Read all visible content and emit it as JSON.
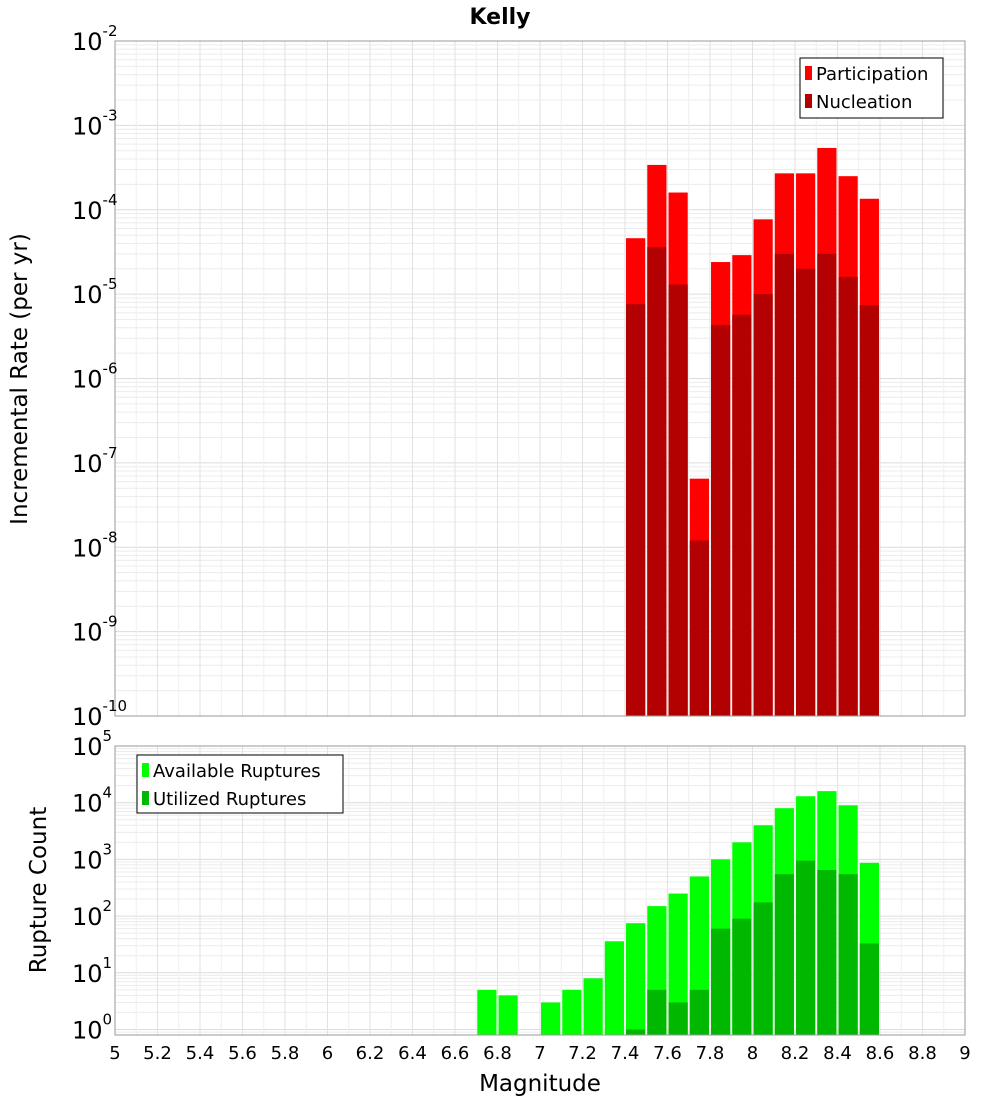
{
  "chart_data": [
    {
      "type": "bar",
      "title": "Kelly",
      "xlabel": "",
      "ylabel": "Incremental Rate (per yr)",
      "yscale": "log",
      "ylim": [
        1e-10,
        0.01
      ],
      "xlim": [
        5,
        9
      ],
      "grid": true,
      "legend_position": "top-right",
      "x": [
        7.45,
        7.55,
        7.65,
        7.75,
        7.85,
        7.95,
        8.05,
        8.15,
        8.25,
        8.35,
        8.45,
        8.55
      ],
      "series": [
        {
          "name": "Participation",
          "color": "#ff0000",
          "values": [
            4.6e-05,
            0.00034,
            0.00016,
            6.5e-08,
            2.4e-05,
            2.9e-05,
            7.7e-05,
            0.00027,
            0.00027,
            0.00054,
            0.00025,
            0.000135
          ]
        },
        {
          "name": "Nucleation",
          "color": "#b30000",
          "values": [
            7.6e-06,
            3.6e-05,
            1.3e-05,
            1.2e-08,
            4.3e-06,
            5.7e-06,
            1e-05,
            3e-05,
            2e-05,
            3e-05,
            1.6e-05,
            7.4e-06
          ]
        }
      ]
    },
    {
      "type": "bar",
      "title": "",
      "xlabel": "Magnitude",
      "ylabel": "Rupture Count",
      "yscale": "log",
      "ylim": [
        0.8,
        100000.0
      ],
      "xlim": [
        5,
        9
      ],
      "grid": true,
      "legend_position": "top-left",
      "x": [
        6.75,
        6.85,
        7.05,
        7.15,
        7.25,
        7.35,
        7.45,
        7.55,
        7.65,
        7.75,
        7.85,
        7.95,
        8.05,
        8.15,
        8.25,
        8.35,
        8.45,
        8.55
      ],
      "series": [
        {
          "name": "Available Ruptures",
          "color": "#00ff00",
          "values": [
            5,
            4,
            3,
            5,
            8,
            36,
            75,
            150,
            250,
            500,
            1000,
            2000,
            4000,
            8000,
            13000,
            16000,
            9000,
            870
          ]
        },
        {
          "name": "Utilized Ruptures",
          "color": "#00b800",
          "values": [
            null,
            null,
            null,
            null,
            null,
            null,
            1,
            5,
            3,
            5,
            60,
            90,
            175,
            550,
            950,
            650,
            550,
            33
          ]
        }
      ]
    }
  ],
  "x_tick_labels": [
    "5",
    "5.2",
    "5.4",
    "5.6",
    "5.8",
    "6",
    "6.2",
    "6.4",
    "6.6",
    "6.8",
    "7",
    "7.2",
    "7.4",
    "7.6",
    "7.8",
    "8",
    "8.2",
    "8.4",
    "8.6",
    "8.8",
    "9"
  ],
  "top_y_ticks": [
    {
      "base": "10",
      "exp": "-10"
    },
    {
      "base": "10",
      "exp": "-9"
    },
    {
      "base": "10",
      "exp": "-8"
    },
    {
      "base": "10",
      "exp": "-7"
    },
    {
      "base": "10",
      "exp": "-6"
    },
    {
      "base": "10",
      "exp": "-5"
    },
    {
      "base": "10",
      "exp": "-4"
    },
    {
      "base": "10",
      "exp": "-3"
    },
    {
      "base": "10",
      "exp": "-2"
    }
  ],
  "bottom_y_ticks": [
    {
      "base": "10",
      "exp": "0"
    },
    {
      "base": "10",
      "exp": "1"
    },
    {
      "base": "10",
      "exp": "2"
    },
    {
      "base": "10",
      "exp": "3"
    },
    {
      "base": "10",
      "exp": "4"
    },
    {
      "base": "10",
      "exp": "5"
    }
  ]
}
